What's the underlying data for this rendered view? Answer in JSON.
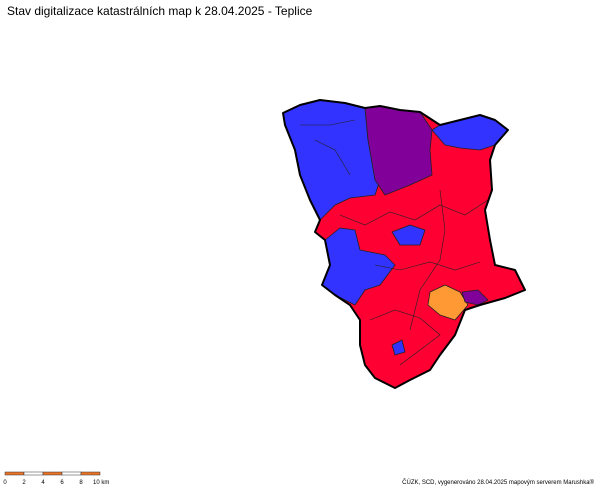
{
  "header": {
    "title": "Stav digitalizace katastrálních map k 28.04.2025 - Teplice"
  },
  "scale_bar": {
    "labels": [
      "0",
      "2",
      "4",
      "6",
      "8",
      "10 km"
    ]
  },
  "footer": {
    "credit": "ČÚZK, SCD, vygenerováno 28.04.2025 mapovým serverem Marushka®"
  }
}
